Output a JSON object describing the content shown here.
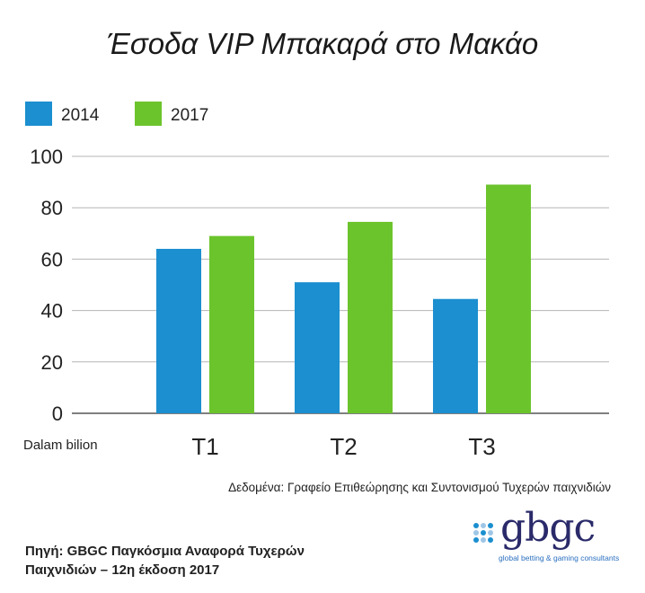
{
  "chart_data": {
    "type": "bar",
    "title": "Έσοδα VIP Μπακαρά στο Μακάο",
    "categories": [
      "T1",
      "T2",
      "T3"
    ],
    "series": [
      {
        "name": "2014",
        "values": [
          64,
          51,
          44.5
        ],
        "color": "#1b8fcf"
      },
      {
        "name": "2017",
        "values": [
          69,
          74.5,
          89
        ],
        "color": "#6cc42c"
      }
    ],
    "ylim": [
      0,
      100
    ],
    "yticks": [
      0,
      20,
      40,
      60,
      80,
      100
    ],
    "ylabel": "",
    "xlabel": "",
    "unit_label": "Dalam bilion",
    "legend_placement": "top-left",
    "grid": true
  },
  "source_data": "Δεδομένα: Γραφείο Επιθεώρησης και Συντονισμού Τυχερών παιχνιδιών",
  "footer": {
    "line1": "Πηγή: GBGC Παγκόσμια Αναφορά Τυχερών",
    "line2": "Παιχνιδιών – 12η έκδοση 2017"
  },
  "logo": {
    "text": "gbgc",
    "tagline": "global betting & gaming consultants",
    "dot_colors": [
      "#1b8fcf",
      "#9fc6e6"
    ]
  }
}
